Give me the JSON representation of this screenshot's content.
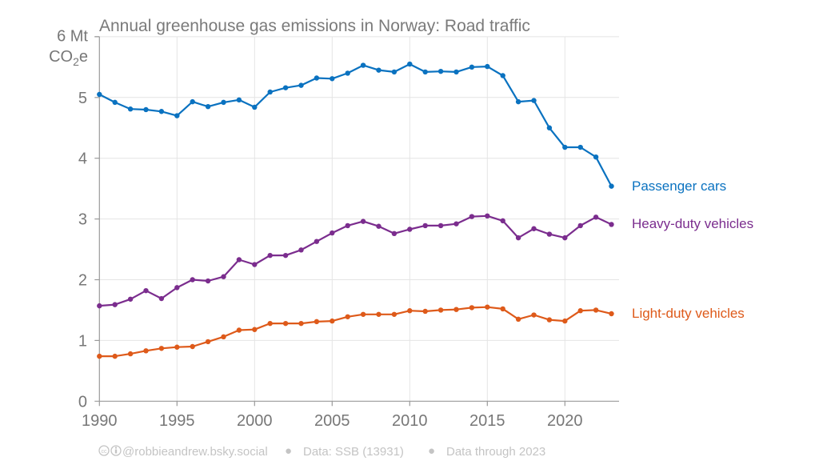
{
  "chart_data": {
    "type": "line",
    "title": "Annual greenhouse gas emissions in Norway: Road traffic",
    "ylabel_line1": "6 Mt",
    "ylabel_line2_main": "CO",
    "ylabel_line2_sub": "2",
    "ylabel_line2_end": "e",
    "xlabel": "",
    "ylim": [
      0,
      6
    ],
    "xlim": [
      1990,
      2023
    ],
    "yticks": [
      "0",
      "1",
      "2",
      "3",
      "4",
      "5"
    ],
    "ytick_values": [
      0,
      1,
      2,
      3,
      4,
      5
    ],
    "xticks": [
      "1990",
      "1995",
      "2000",
      "2005",
      "2010",
      "2015",
      "2020"
    ],
    "xtick_values": [
      1990,
      1995,
      2000,
      2005,
      2010,
      2015,
      2020
    ],
    "grid": true,
    "legend": "direct-labels-right",
    "x": [
      1990,
      1991,
      1992,
      1993,
      1994,
      1995,
      1996,
      1997,
      1998,
      1999,
      2000,
      2001,
      2002,
      2003,
      2004,
      2005,
      2006,
      2007,
      2008,
      2009,
      2010,
      2011,
      2012,
      2013,
      2014,
      2015,
      2016,
      2017,
      2018,
      2019,
      2020,
      2021,
      2022,
      2023
    ],
    "series": [
      {
        "name": "Passenger cars",
        "color": "#0a72c0",
        "values": [
          5.05,
          4.92,
          4.81,
          4.8,
          4.77,
          4.7,
          4.93,
          4.85,
          4.92,
          4.96,
          4.84,
          5.09,
          5.16,
          5.2,
          5.32,
          5.31,
          5.4,
          5.53,
          5.45,
          5.42,
          5.55,
          5.42,
          5.43,
          5.42,
          5.5,
          5.51,
          5.36,
          4.93,
          4.95,
          4.5,
          4.18,
          4.18,
          4.02,
          3.54
        ]
      },
      {
        "name": "Heavy-duty vehicles",
        "color": "#7b2d8e",
        "values": [
          1.57,
          1.59,
          1.68,
          1.82,
          1.69,
          1.87,
          2.0,
          1.98,
          2.05,
          2.33,
          2.25,
          2.4,
          2.4,
          2.49,
          2.63,
          2.77,
          2.89,
          2.96,
          2.88,
          2.76,
          2.83,
          2.89,
          2.89,
          2.92,
          3.04,
          3.05,
          2.97,
          2.69,
          2.84,
          2.75,
          2.69,
          2.89,
          3.03,
          2.91
        ]
      },
      {
        "name": "Light-duty vehicles",
        "color": "#de5a1a",
        "values": [
          0.74,
          0.74,
          0.78,
          0.83,
          0.87,
          0.89,
          0.9,
          0.98,
          1.06,
          1.17,
          1.18,
          1.28,
          1.28,
          1.28,
          1.31,
          1.32,
          1.39,
          1.43,
          1.43,
          1.43,
          1.49,
          1.48,
          1.5,
          1.51,
          1.54,
          1.55,
          1.52,
          1.35,
          1.42,
          1.34,
          1.32,
          1.49,
          1.5,
          1.44
        ]
      }
    ],
    "footer": {
      "credit_icons": "cc-by-icon",
      "credit": "@robbieandrew.bsky.social",
      "source": "Data: SSB (13931)",
      "coverage": "Data through 2023",
      "separator": "●"
    }
  }
}
